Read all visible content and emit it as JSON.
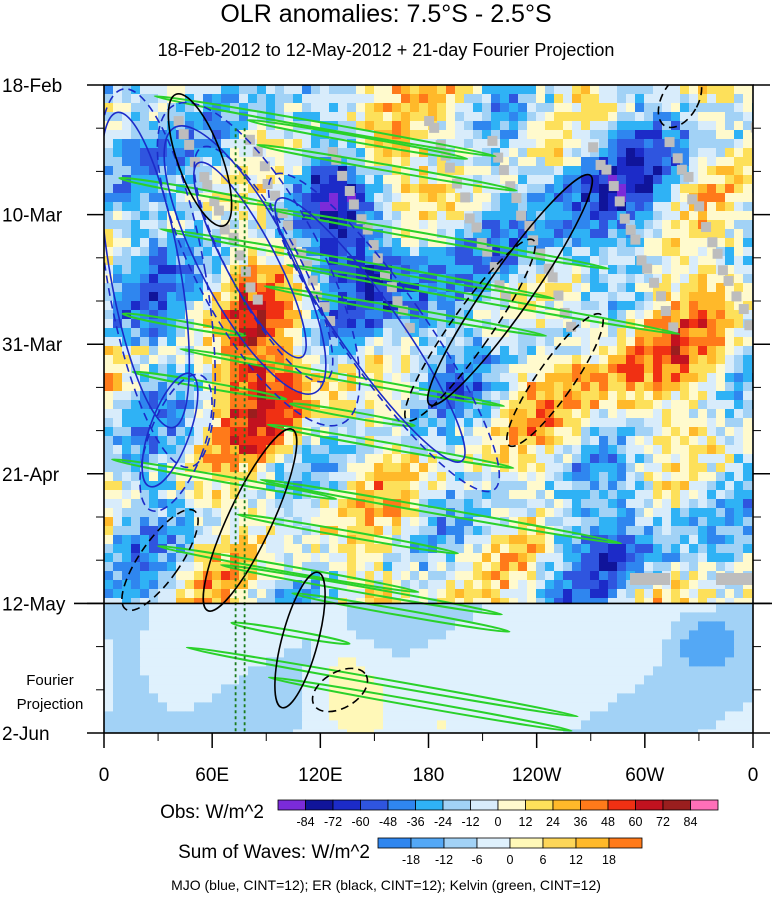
{
  "title": "OLR anomalies: 7.5°S - 2.5°S",
  "subtitle": "18-Feb-2012 to 12-May-2012 + 21-day Fourier Projection",
  "footer": "MJO (blue, CINT=12); ER (black, CINT=12); Kelvin (green, CINT=12)",
  "projection_label": [
    "Fourier",
    "Projection"
  ],
  "chart_data": {
    "type": "heatmap",
    "x_ticks": [
      "0",
      "60E",
      "120E",
      "180",
      "120W",
      "60W",
      "0"
    ],
    "x_tick_values": [
      0,
      60,
      120,
      180,
      240,
      300,
      360
    ],
    "y_ticks": [
      "18-Feb",
      "10-Mar",
      "31-Mar",
      "21-Apr",
      "12-May",
      "2-Jun"
    ],
    "y_tick_days": [
      0,
      21,
      42,
      63,
      84,
      105
    ],
    "obs_end_day": 84,
    "obs_end_label": "12-May",
    "legend_obs": {
      "label": "Obs: W/m^2",
      "levels": [
        "-84",
        "-72",
        "-60",
        "-48",
        "-36",
        "-24",
        "-12",
        "0",
        "12",
        "24",
        "36",
        "48",
        "60",
        "72",
        "84"
      ],
      "colors": [
        "#7b2bd9",
        "#10149a",
        "#1c2bc8",
        "#2f55df",
        "#2f86ef",
        "#2fb2f5",
        "#a2d2f6",
        "#d8ecfb",
        "#fffacd",
        "#fde05a",
        "#ffb92a",
        "#ff7a1a",
        "#f03013",
        "#c2121f",
        "#9a1e1e",
        "#ff6fb8"
      ]
    },
    "legend_waves": {
      "label": "Sum of Waves: W/m^2",
      "levels": [
        "-18",
        "-12",
        "-6",
        "0",
        "6",
        "12",
        "18"
      ],
      "colors": [
        "#2f86ef",
        "#54a8f5",
        "#a2d2f6",
        "#dff1fd",
        "#fff8b8",
        "#fdd659",
        "#ffb92a",
        "#ff7a1a"
      ]
    },
    "overlays": [
      {
        "name": "MJO",
        "color": "#1c2bc8",
        "cint": 12
      },
      {
        "name": "ER",
        "color": "#000000",
        "cint": 12
      },
      {
        "name": "Kelvin",
        "color": "#2ad12a",
        "cint": 12
      }
    ],
    "reference_lines_lon": [
      73,
      78
    ]
  }
}
